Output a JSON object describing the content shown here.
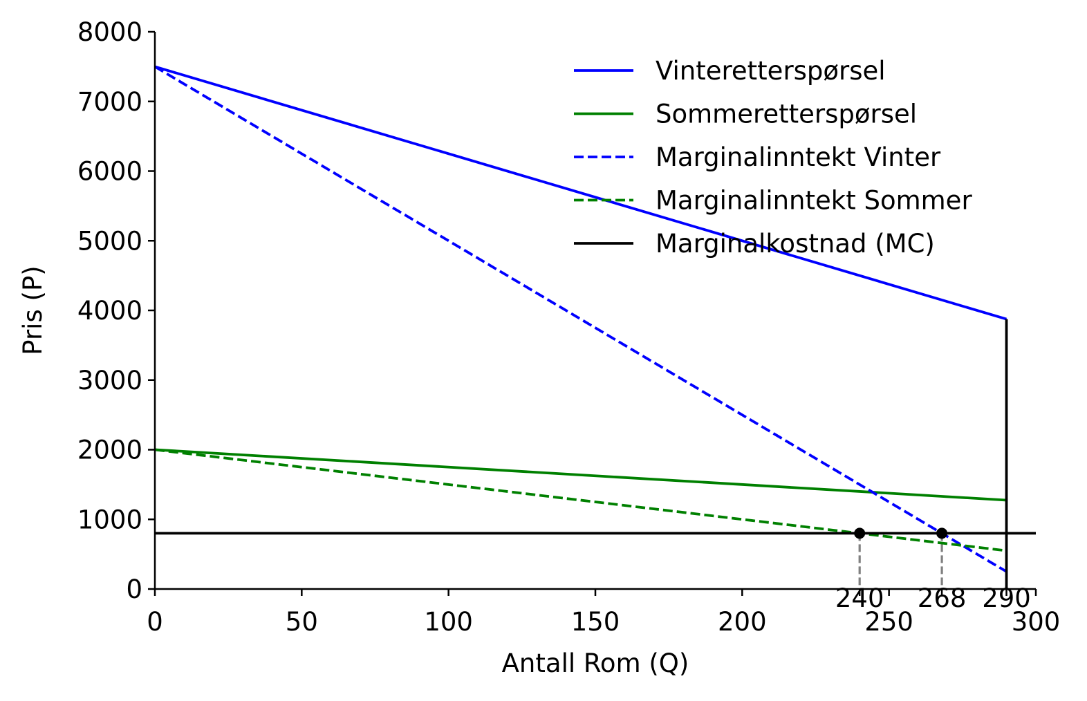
{
  "chart_data": {
    "type": "line",
    "xlabel": "Antall Rom (Q)",
    "ylabel": "Pris (P)",
    "xlim": [
      0,
      300
    ],
    "ylim": [
      0,
      8000
    ],
    "x_ticks": [
      0,
      50,
      100,
      150,
      200,
      250,
      300
    ],
    "y_ticks": [
      0,
      1000,
      2000,
      3000,
      4000,
      5000,
      6000,
      7000,
      8000
    ],
    "grid": false,
    "legend_position": "top-right",
    "colors": {
      "winter": "#0000ff",
      "summer": "#008000",
      "mc": "#000000",
      "guide": "#808080"
    },
    "series": [
      {
        "name": "Vinteretterspørsel",
        "style": "solid",
        "color": "#0000ff",
        "points": [
          [
            0,
            7500
          ],
          [
            290,
            3875
          ]
        ]
      },
      {
        "name": "Sommeretterspørsel",
        "style": "solid",
        "color": "#008000",
        "points": [
          [
            0,
            2000
          ],
          [
            290,
            1275
          ]
        ]
      },
      {
        "name": "Marginalinntekt Vinter",
        "style": "dashed",
        "color": "#0000ff",
        "points": [
          [
            0,
            7500
          ],
          [
            290,
            250
          ]
        ]
      },
      {
        "name": "Marginalinntekt Sommer",
        "style": "dashed",
        "color": "#008000",
        "points": [
          [
            0,
            2000
          ],
          [
            290,
            550
          ]
        ]
      },
      {
        "name": "Marginalkostnad (MC)",
        "style": "solid",
        "color": "#000000",
        "points": [
          [
            0,
            800
          ],
          [
            300,
            800
          ]
        ]
      }
    ],
    "capacity_line": {
      "x": 290,
      "y_range": [
        0,
        3875
      ],
      "color": "#000000"
    },
    "equilibrium_points": [
      {
        "x": 240,
        "y": 800,
        "label": "240"
      },
      {
        "x": 268,
        "y": 800,
        "label": "268"
      }
    ],
    "extra_x_labels": [
      {
        "x": 240,
        "label": "240"
      },
      {
        "x": 268,
        "label": "268"
      },
      {
        "x": 290,
        "label": "290"
      }
    ]
  }
}
